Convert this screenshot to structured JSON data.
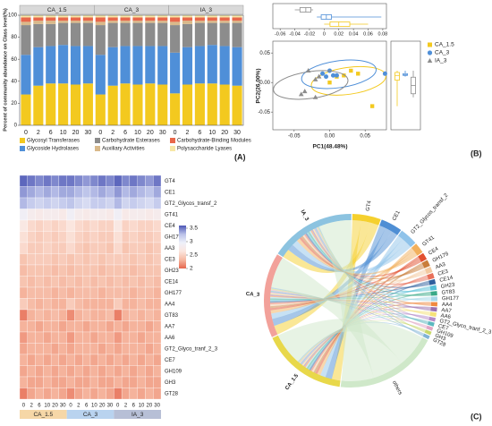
{
  "chart_data": [
    {
      "type": "bar",
      "stacked": true,
      "label": "(A)",
      "y_label": "Percent of community abundance on Class level(%)",
      "groups": [
        "CA_1.5",
        "CA_3",
        "IA_3"
      ],
      "categories": [
        "0",
        "2",
        "6",
        "10",
        "20",
        "30",
        "0",
        "2",
        "6",
        "10",
        "20",
        "30",
        "0",
        "2",
        "6",
        "10",
        "20",
        "30"
      ],
      "ylim": [
        0,
        100
      ],
      "yticks": [
        0,
        20,
        40,
        60,
        80,
        100
      ],
      "series": [
        {
          "name": "Glycosyl Transferases",
          "color": "#f3c91f",
          "values": [
            28,
            36,
            38,
            38,
            37,
            38,
            28,
            36,
            38,
            37,
            38,
            37,
            29,
            37,
            38,
            38,
            37,
            36
          ]
        },
        {
          "name": "Glycoside Hydrolases",
          "color": "#4f8fd8",
          "values": [
            36,
            35,
            34,
            35,
            35,
            34,
            36,
            35,
            34,
            35,
            34,
            35,
            37,
            34,
            34,
            35,
            35,
            35
          ]
        },
        {
          "name": "Carbohydrate Esterases",
          "color": "#8c8c8c",
          "values": [
            27,
            21,
            20,
            20,
            21,
            21,
            27,
            22,
            21,
            21,
            21,
            21,
            25,
            21,
            21,
            20,
            21,
            22
          ]
        },
        {
          "name": "Auxiliary Activities",
          "color": "#d9b98a",
          "values": [
            3,
            3,
            3,
            2,
            2,
            2,
            3,
            2,
            2,
            2,
            2,
            2,
            3,
            3,
            2,
            2,
            2,
            2
          ]
        },
        {
          "name": "Carbohydrate-Binding Modules",
          "color": "#e8674a",
          "values": [
            4,
            3,
            3,
            3,
            3,
            3,
            4,
            3,
            3,
            3,
            3,
            3,
            4,
            3,
            3,
            3,
            3,
            3
          ]
        },
        {
          "name": "Polysaccharide Lyases",
          "color": "#f7e7a6",
          "values": [
            2,
            2,
            2,
            2,
            2,
            2,
            2,
            2,
            2,
            2,
            2,
            2,
            2,
            2,
            2,
            2,
            2,
            2
          ]
        }
      ]
    },
    {
      "type": "scatter",
      "label": "(B)",
      "x_label": "PC1(48.48%)",
      "y_label": "PC2(26.00%)",
      "xlim": [
        -0.08,
        0.08
      ],
      "xticks": [
        {
          "value": -0.05,
          "label": "-0.05"
        },
        {
          "value": 0,
          "label": "0.00"
        },
        {
          "value": 0.05,
          "label": "0.05"
        }
      ],
      "ylim": [
        -0.08,
        0.07
      ],
      "yticks": [
        {
          "value": -0.05,
          "label": "-0.05"
        },
        {
          "value": 0,
          "label": "0.00"
        },
        {
          "value": 0.05,
          "label": "0.05"
        }
      ],
      "box_xlim": [
        -0.07,
        0.085
      ],
      "box_xticks": [
        {
          "value": -0.06,
          "label": "-0.06"
        },
        {
          "value": -0.04,
          "label": "-0.04"
        },
        {
          "value": -0.02,
          "label": "-0.02"
        },
        0,
        {
          "value": 0.02,
          "label": "0.02"
        },
        {
          "value": 0.04,
          "label": "0.04"
        },
        {
          "value": 0.06,
          "label": "0.06"
        },
        {
          "value": 0.08,
          "label": "0.08"
        }
      ],
      "series": [
        {
          "name": "CA_1.5",
          "color": "#f3c91f",
          "marker": "square",
          "x": [
            0.0,
            0.01,
            0.02,
            0.03,
            0.04,
            0.06
          ],
          "y": [
            0.0,
            0.01,
            0.012,
            0.02,
            0.015,
            -0.04
          ],
          "x_box": [
            0.0,
            0.008,
            0.02,
            0.035,
            0.06
          ],
          "y_box": [
            -0.04,
            0.004,
            0.012,
            0.017,
            0.02
          ]
        },
        {
          "name": "CA_3",
          "color": "#4f8fd8",
          "marker": "circle",
          "x": [
            -0.01,
            -0.005,
            0.0,
            0.005,
            0.01,
            0.078
          ],
          "y": [
            0.015,
            0.01,
            0.02,
            0.012,
            0.012,
            0.015
          ],
          "x_box": [
            -0.01,
            -0.004,
            0.003,
            0.01,
            0.078
          ],
          "y_box": [
            0.01,
            0.012,
            0.013,
            0.015,
            0.02
          ]
        },
        {
          "name": "IA_3",
          "color": "#8c8c8c",
          "marker": "triangle",
          "x": [
            -0.04,
            -0.035,
            -0.03,
            -0.02,
            -0.02,
            -0.015
          ],
          "y": [
            -0.02,
            -0.015,
            0.02,
            -0.025,
            0.005,
            0.01
          ],
          "x_box": [
            -0.04,
            -0.033,
            -0.025,
            -0.018,
            -0.015
          ],
          "y_box": [
            -0.025,
            -0.019,
            -0.005,
            0.009,
            0.02
          ]
        }
      ]
    },
    {
      "type": "heatmap",
      "categories": [
        "0",
        "2",
        "6",
        "10",
        "20",
        "30",
        "0",
        "2",
        "6",
        "10",
        "20",
        "30",
        "0",
        "2",
        "6",
        "10",
        "20",
        "30"
      ],
      "groups": [
        {
          "name": "CA_1.5",
          "color": "#f6d7a7"
        },
        {
          "name": "CA_3",
          "color": "#b9d3ef"
        },
        {
          "name": "IA_3",
          "color": "#b7bfd6"
        }
      ],
      "rows": [
        "GT4",
        "CE1",
        "GT2_Glycos_transf_2",
        "GT41",
        "CE4",
        "GH179",
        "AA3",
        "CE3",
        "GH23",
        "CE14",
        "GH177",
        "AA4",
        "GT83",
        "AA7",
        "AA6",
        "GT2_Glyco_tranf_2_3",
        "CE7",
        "GH109",
        "GH3",
        "GT28"
      ],
      "values": [
        [
          3.55,
          3.5,
          3.45,
          3.5,
          3.45,
          3.5,
          3.5,
          3.45,
          3.4,
          3.45,
          3.5,
          3.45,
          3.55,
          3.45,
          3.5,
          3.45,
          3.4,
          3.5
        ],
        [
          3.4,
          3.35,
          3.3,
          3.35,
          3.3,
          3.35,
          3.35,
          3.3,
          3.25,
          3.3,
          3.35,
          3.3,
          3.4,
          3.3,
          3.35,
          3.3,
          3.25,
          3.35
        ],
        [
          3.3,
          3.2,
          3.15,
          3.2,
          3.15,
          3.2,
          3.25,
          3.15,
          3.1,
          3.2,
          3.2,
          3.15,
          3.3,
          3.15,
          3.2,
          3.15,
          3.1,
          3.2
        ],
        [
          2.9,
          2.8,
          2.75,
          2.8,
          2.8,
          2.75,
          2.9,
          2.8,
          2.75,
          2.8,
          2.8,
          2.75,
          2.9,
          2.75,
          2.8,
          2.8,
          2.75,
          2.8
        ],
        [
          2.7,
          2.55,
          2.5,
          2.55,
          2.5,
          2.55,
          2.65,
          2.55,
          2.5,
          2.55,
          2.5,
          2.5,
          2.7,
          2.5,
          2.55,
          2.5,
          2.5,
          2.55
        ],
        [
          2.6,
          2.5,
          2.45,
          2.5,
          2.45,
          2.5,
          2.6,
          2.5,
          2.45,
          2.5,
          2.45,
          2.45,
          2.6,
          2.45,
          2.5,
          2.45,
          2.45,
          2.5
        ],
        [
          2.55,
          2.45,
          2.45,
          2.5,
          2.45,
          2.45,
          2.55,
          2.45,
          2.4,
          2.45,
          2.45,
          2.4,
          2.55,
          2.4,
          2.45,
          2.45,
          2.4,
          2.45
        ],
        [
          2.4,
          2.45,
          2.45,
          2.45,
          2.4,
          2.45,
          2.4,
          2.45,
          2.4,
          2.45,
          2.4,
          2.45,
          2.45,
          2.45,
          2.4,
          2.45,
          2.4,
          2.45
        ],
        [
          2.35,
          2.4,
          2.4,
          2.4,
          2.35,
          2.4,
          2.35,
          2.4,
          2.4,
          2.4,
          2.35,
          2.4,
          2.4,
          2.4,
          2.35,
          2.4,
          2.4,
          2.4
        ],
        [
          2.4,
          2.35,
          2.4,
          2.35,
          2.4,
          2.35,
          2.4,
          2.35,
          2.4,
          2.35,
          2.4,
          2.35,
          2.4,
          2.35,
          2.4,
          2.35,
          2.4,
          2.35
        ],
        [
          2.3,
          2.35,
          2.35,
          2.35,
          2.3,
          2.35,
          2.3,
          2.35,
          2.35,
          2.35,
          2.3,
          2.35,
          2.35,
          2.35,
          2.3,
          2.35,
          2.35,
          2.3
        ],
        [
          2.45,
          2.35,
          2.3,
          2.35,
          2.3,
          2.3,
          2.45,
          2.35,
          2.3,
          2.3,
          2.3,
          2.3,
          2.45,
          2.3,
          2.3,
          2.35,
          2.3,
          2.3
        ],
        [
          2.1,
          2.3,
          2.35,
          2.3,
          2.35,
          2.3,
          2.15,
          2.3,
          2.35,
          2.3,
          2.3,
          2.35,
          2.1,
          2.3,
          2.35,
          2.3,
          2.35,
          2.3
        ],
        [
          2.3,
          2.3,
          2.25,
          2.3,
          2.3,
          2.25,
          2.3,
          2.3,
          2.25,
          2.3,
          2.3,
          2.25,
          2.3,
          2.25,
          2.3,
          2.3,
          2.25,
          2.3
        ],
        [
          2.2,
          2.3,
          2.3,
          2.25,
          2.3,
          2.3,
          2.2,
          2.3,
          2.3,
          2.25,
          2.3,
          2.3,
          2.2,
          2.3,
          2.3,
          2.25,
          2.3,
          2.3
        ],
        [
          2.25,
          2.3,
          2.3,
          2.3,
          2.25,
          2.3,
          2.25,
          2.3,
          2.3,
          2.3,
          2.25,
          2.3,
          2.25,
          2.3,
          2.3,
          2.3,
          2.25,
          2.3
        ],
        [
          2.3,
          2.25,
          2.3,
          2.25,
          2.3,
          2.25,
          2.3,
          2.25,
          2.3,
          2.25,
          2.3,
          2.25,
          2.3,
          2.25,
          2.3,
          2.25,
          2.3,
          2.25
        ],
        [
          2.25,
          2.3,
          2.25,
          2.3,
          2.25,
          2.3,
          2.25,
          2.3,
          2.25,
          2.3,
          2.25,
          2.3,
          2.25,
          2.3,
          2.25,
          2.3,
          2.25,
          2.3
        ],
        [
          2.3,
          2.25,
          2.25,
          2.3,
          2.25,
          2.25,
          2.3,
          2.25,
          2.25,
          2.3,
          2.25,
          2.25,
          2.3,
          2.25,
          2.25,
          2.3,
          2.25,
          2.25
        ],
        [
          2.1,
          2.25,
          2.3,
          2.25,
          2.3,
          2.25,
          2.15,
          2.25,
          2.3,
          2.25,
          2.3,
          2.25,
          2.1,
          2.25,
          2.3,
          2.25,
          2.3,
          2.25
        ]
      ],
      "clim": [
        2,
        3.6
      ],
      "colorbar_ticks": [
        2,
        2.5,
        3,
        3.5
      ],
      "colors": [
        "#e5654c",
        "#f6b8a1",
        "#fbe6de",
        "#eef0fa",
        "#b9c0e8",
        "#4c56b5"
      ]
    },
    {
      "type": "chord",
      "label": "(C)",
      "groups": [
        {
          "name": "CA_1.5",
          "color": "#e8d84a"
        },
        {
          "name": "CA_3",
          "color": "#f2a19a"
        },
        {
          "name": "IA_3",
          "color": "#8cc3e0"
        }
      ],
      "families": [
        "GT4",
        "CE1",
        "GT2_Glycos_transf_2",
        "GT41",
        "CE4",
        "GH179",
        "AA3",
        "CE3",
        "CE14",
        "GH23",
        "GT83",
        "GH177",
        "AA4",
        "AA7",
        "AA6",
        "GT2_Glyco_tranf_2_3",
        "CE7",
        "GH109",
        "GH3",
        "GT28",
        "others"
      ],
      "family_colors": [
        "#f5d02e",
        "#4e8ed4",
        "#8fc3ea",
        "#f2b05c",
        "#e2502f",
        "#c97d3a",
        "#f3c9a0",
        "#e8705a",
        "#2f5f9e",
        "#56c0d8",
        "#3aaa88",
        "#a4d7e8",
        "#f08a40",
        "#9a6fb0",
        "#f6e27a",
        "#b58bc9",
        "#5bb8c0",
        "#e1a6c4",
        "#c8d86a",
        "#7fb3d5",
        "#cfe8c9"
      ],
      "matrix": [
        [
          8,
          6,
          5,
          3,
          2,
          1.8,
          1.6,
          1.5,
          1.4,
          1.4,
          1.3,
          1.3,
          1.2,
          1.2,
          1.2,
          1.1,
          1.1,
          1,
          1,
          1,
          30
        ],
        [
          8.5,
          6.5,
          5,
          3,
          2,
          1.8,
          1.6,
          1.5,
          1.4,
          1.4,
          1.2,
          1.3,
          1.2,
          1.2,
          1.2,
          1.1,
          1.1,
          1,
          1,
          1,
          29
        ],
        [
          8,
          6,
          5.5,
          3,
          2,
          1.8,
          1.6,
          1.5,
          1.4,
          1.4,
          1.3,
          1.3,
          1.2,
          1.2,
          1.2,
          1.1,
          1.1,
          1,
          1,
          1,
          30
        ]
      ]
    }
  ]
}
